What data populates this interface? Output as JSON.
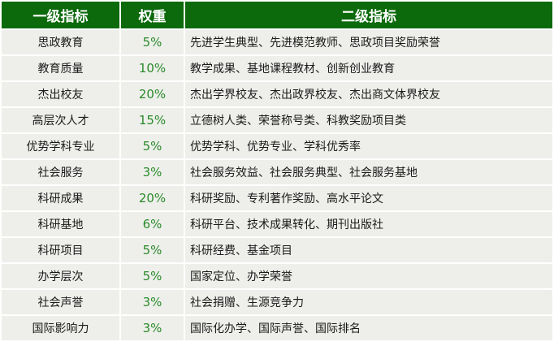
{
  "colors": {
    "header_bg": "#0c6a0c",
    "row_bg": "#eeefeb",
    "weight_text": "#2a8a2a"
  },
  "headers": [
    "一级指标",
    "权重",
    "二级指标"
  ],
  "rows": [
    {
      "level1": "思政教育",
      "weight": "5%",
      "level2": "先进学生典型、先进模范教师、思政项目奖励荣誉"
    },
    {
      "level1": "教育质量",
      "weight": "10%",
      "level2": "教学成果、基地课程教材、创新创业教育"
    },
    {
      "level1": "杰出校友",
      "weight": "20%",
      "level2": "杰出学界校友、杰出政界校友、杰出商文体界校友"
    },
    {
      "level1": "高层次人才",
      "weight": "15%",
      "level2": "立德树人类、荣誉称号类、科教奖励项目类"
    },
    {
      "level1": "优势学科专业",
      "weight": "5%",
      "level2": "优势学科、优势专业、学科优秀率"
    },
    {
      "level1": "社会服务",
      "weight": "3%",
      "level2": "社会服务效益、社会服务典型、社会服务基地"
    },
    {
      "level1": "科研成果",
      "weight": "20%",
      "level2": "科研奖励、专利著作奖励、高水平论文"
    },
    {
      "level1": "科研基地",
      "weight": "6%",
      "level2": "科研平台、技术成果转化、期刊出版社"
    },
    {
      "level1": "科研项目",
      "weight": "5%",
      "level2": "科研经费、基金项目"
    },
    {
      "level1": "办学层次",
      "weight": "5%",
      "level2": "国家定位、办学荣誉"
    },
    {
      "level1": "社会声誉",
      "weight": "3%",
      "level2": "社会捐赠、生源竞争力"
    },
    {
      "level1": "国际影响力",
      "weight": "3%",
      "level2": "国际化办学、国际声誉、国际排名"
    }
  ]
}
